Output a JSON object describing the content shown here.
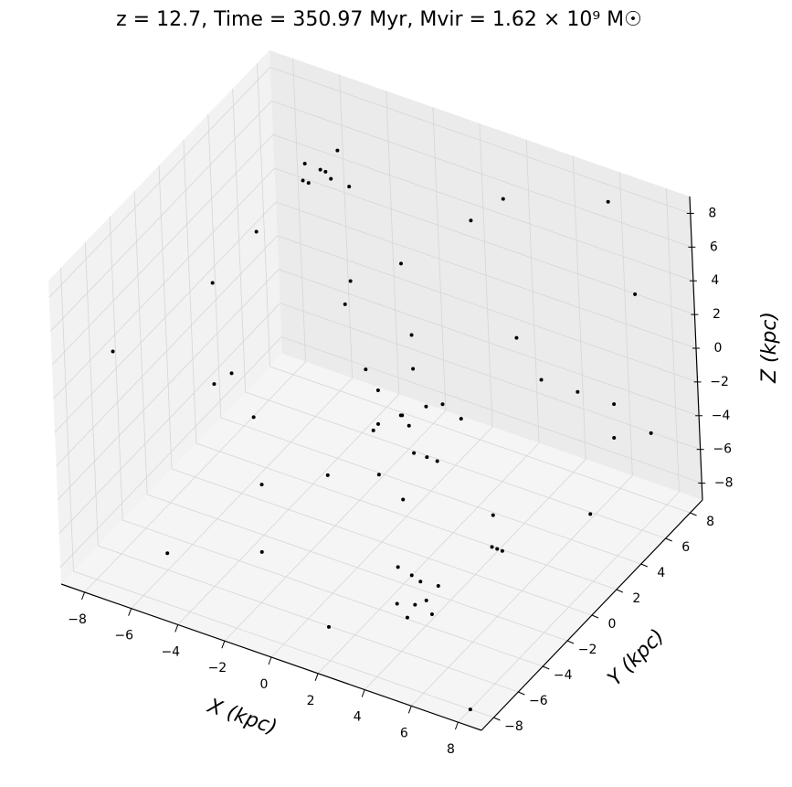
{
  "chart_data": {
    "type": "scatter3d",
    "title": "z = 12.7,  Time = 350.97 Myr,  Mvir = 1.62 × 10⁹ M☉",
    "x_label": "X (kpc)",
    "y_label": "Y (kpc)",
    "z_label": "Z (kpc)",
    "color": "#000000",
    "xlim": [
      -9,
      9
    ],
    "ylim": [
      -9,
      9
    ],
    "zlim": [
      -9,
      9
    ],
    "xticks": [
      {
        "value": -8,
        "label": "−8"
      },
      {
        "value": -6,
        "label": "−6"
      },
      {
        "value": -4,
        "label": "−4"
      },
      {
        "value": -2,
        "label": "−2"
      },
      0,
      2,
      4,
      6,
      8
    ],
    "yticks": [
      {
        "value": -8,
        "label": "−8"
      },
      {
        "value": -6,
        "label": "−6"
      },
      {
        "value": -4,
        "label": "−4"
      },
      {
        "value": -2,
        "label": "−2"
      },
      0,
      2,
      4,
      6,
      8
    ],
    "zticks": [
      {
        "value": -8,
        "label": "−8"
      },
      {
        "value": -6,
        "label": "−6"
      },
      {
        "value": -4,
        "label": "−4"
      },
      {
        "value": -2,
        "label": "−2"
      },
      0,
      2,
      4,
      6,
      8
    ],
    "grid": true,
    "x": [
      0,
      1,
      -1,
      0.5,
      1,
      -0.5,
      0,
      2,
      1.5,
      -1,
      0,
      1,
      0.5,
      -1.5,
      2,
      0,
      3,
      3.5,
      2.5,
      3,
      4,
      2.8,
      3.2,
      3.6,
      -4,
      -4.5,
      -3.5,
      -5,
      -4,
      -3,
      -4.2,
      -2,
      -2,
      0,
      -7,
      -6.5,
      5,
      5.5,
      4.5,
      7,
      6,
      8,
      5,
      7.5,
      -8,
      -6,
      6,
      2,
      -2,
      4,
      -8,
      8,
      0,
      -4,
      6,
      -6,
      2,
      8,
      -2,
      4,
      -6,
      0,
      7,
      -3
    ],
    "y": [
      2,
      1,
      2,
      3,
      2,
      1,
      3,
      1,
      2.5,
      1.5,
      0,
      0,
      1,
      2,
      3,
      2.5,
      -3,
      -3,
      -3.5,
      -2.5,
      -3.5,
      -2.8,
      -4,
      -2.2,
      4,
      4.5,
      3.5,
      4,
      5,
      4,
      3,
      2,
      1.5,
      3,
      0,
      0.5,
      0,
      -0.5,
      0.5,
      6,
      5,
      7,
      4,
      5,
      -6,
      6,
      8,
      7,
      -6,
      -6,
      2,
      -8,
      8,
      -2,
      -2,
      -6,
      -8,
      2,
      6,
      4,
      2,
      -4,
      8,
      -4
    ],
    "z": [
      -3,
      -4,
      -2,
      -3,
      -5,
      -3,
      -1,
      -4,
      -2,
      -4,
      -5,
      -6,
      -2,
      -1,
      -3,
      -4,
      -9,
      -8.5,
      -8.8,
      -8,
      -8.7,
      -7.5,
      -8.9,
      -8.2,
      8,
      7.5,
      8.2,
      7,
      8.5,
      7.6,
      8,
      4,
      3,
      1,
      -3,
      -2.5,
      -7,
      -6.5,
      -7.5,
      -2,
      -1,
      -4,
      0,
      -3,
      3,
      6,
      8,
      7,
      2,
      -4,
      1,
      -9,
      4,
      -6,
      -3,
      -8,
      -7,
      -5,
      2,
      2,
      5,
      -2,
      3,
      -8
    ]
  }
}
